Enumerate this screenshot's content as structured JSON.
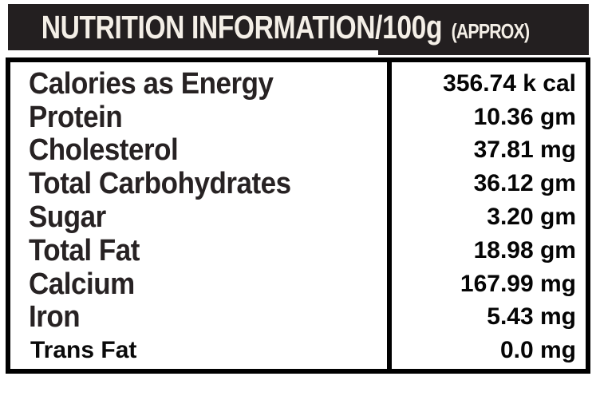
{
  "header": {
    "title": "NUTRITION INFORMATION/100g",
    "suffix": "(APPROX)"
  },
  "table": {
    "rows": [
      {
        "label": "Calories as Energy",
        "value": "356.74 k cal"
      },
      {
        "label": "Protein",
        "value": "10.36 gm"
      },
      {
        "label": "Cholesterol",
        "value": "37.81 mg"
      },
      {
        "label": "Total Carbohydrates",
        "value": "36.12 gm"
      },
      {
        "label": "Sugar",
        "value": "3.20 gm"
      },
      {
        "label": "Total Fat",
        "value": "18.98 gm"
      },
      {
        "label": "Calcium",
        "value": "167.99 mg"
      },
      {
        "label": "Iron",
        "value": "5.43 mg"
      },
      {
        "label": "Trans Fat",
        "value": "0.0 mg"
      }
    ]
  },
  "colors": {
    "header_bg": "#231f20",
    "header_text": "#f4efe7",
    "label_text": "#272223",
    "value_text": "#050505",
    "border": "#000000",
    "background": "#ffffff"
  }
}
